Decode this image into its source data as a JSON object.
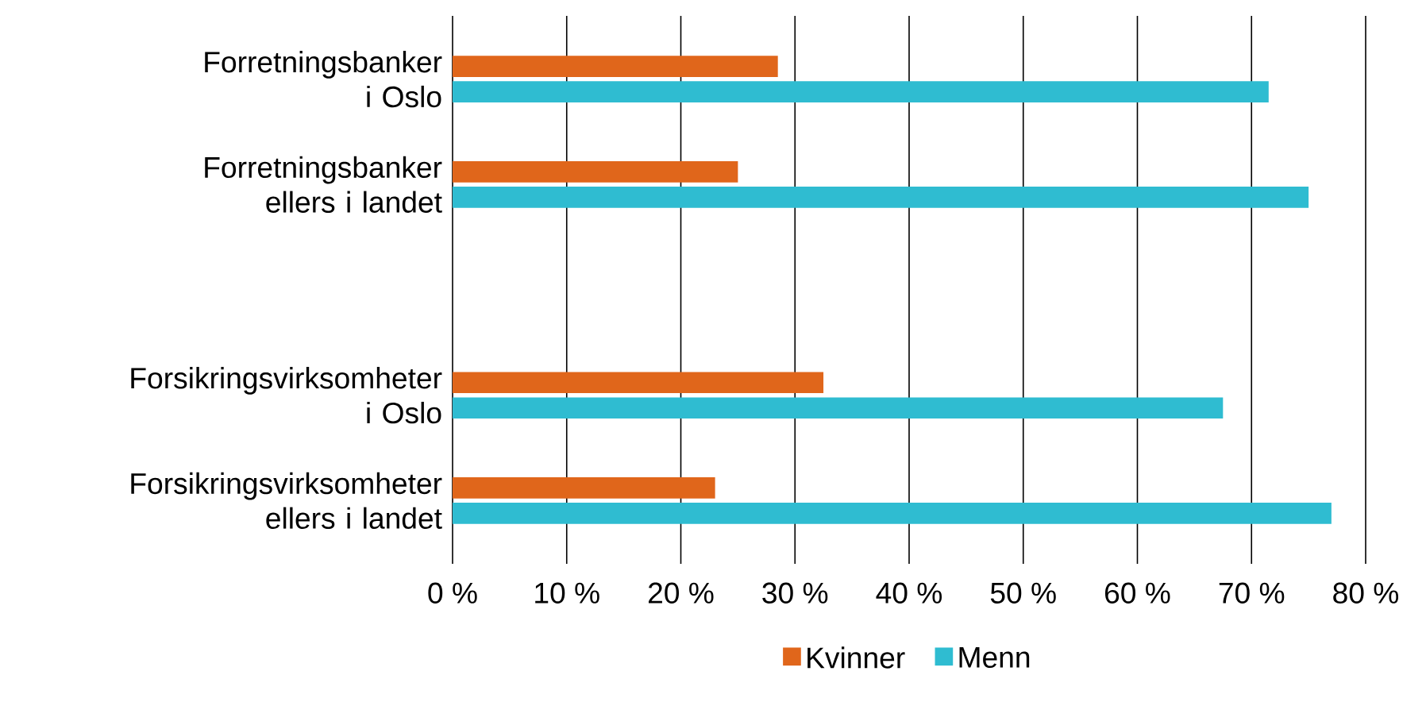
{
  "chart_data": {
    "type": "bar",
    "orientation": "horizontal",
    "categories": [
      "Forretningsbanker\ni Oslo",
      "Forretningsbanker\nellers i landet",
      null,
      "Forsikringsvirksomheter\ni Oslo",
      "Forsikringsvirksomheter\nellers i landet"
    ],
    "series": [
      {
        "name": "Kvinner",
        "color": "#e0661b",
        "values": [
          28.5,
          25,
          null,
          32.5,
          23
        ]
      },
      {
        "name": "Menn",
        "color": "#2fbcd1",
        "values": [
          71.5,
          75,
          null,
          67.5,
          77
        ]
      }
    ],
    "xlim": [
      0,
      80
    ],
    "xticks": [
      {
        "value": 0,
        "label": "0 %"
      },
      {
        "value": 10,
        "label": "10 %"
      },
      {
        "value": 20,
        "label": "20 %"
      },
      {
        "value": 30,
        "label": "30 %"
      },
      {
        "value": 40,
        "label": "40 %"
      },
      {
        "value": 50,
        "label": "50 %"
      },
      {
        "value": 60,
        "label": "60 %"
      },
      {
        "value": 70,
        "label": "70 %"
      },
      {
        "value": 80,
        "label": "80 %"
      }
    ],
    "grid": "x",
    "legend": "bottom"
  }
}
